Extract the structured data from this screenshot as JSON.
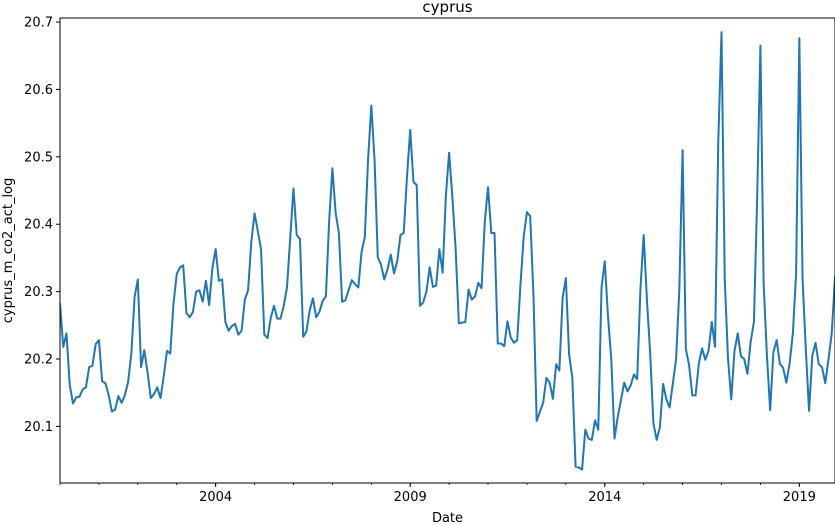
{
  "chart_data": {
    "type": "line",
    "title": "cyprus",
    "xlabel": "Date",
    "ylabel": "cyprus_m_co2_act_log",
    "x_range": [
      "2000-01",
      "2019-12"
    ],
    "x_ticks": [
      "2004",
      "2009",
      "2014",
      "2019"
    ],
    "ylim": [
      20.016,
      20.706
    ],
    "y_ticks": [
      "20.1",
      "20.2",
      "20.3",
      "20.4",
      "20.5",
      "20.6",
      "20.7"
    ],
    "grid": false,
    "line_color": "#1f77b4",
    "series": [
      {
        "x": [
          "2000-01",
          "2000-02",
          "2000-03",
          "2000-04",
          "2000-05",
          "2000-06",
          "2000-07",
          "2000-08",
          "2000-09",
          "2000-10",
          "2000-11",
          "2000-12",
          "2001-01",
          "2001-02",
          "2001-03",
          "2001-04",
          "2001-05",
          "2001-06",
          "2001-07",
          "2001-08",
          "2001-09",
          "2001-10",
          "2001-11",
          "2001-12",
          "2002-01",
          "2002-02",
          "2002-03",
          "2002-04",
          "2002-05",
          "2002-06",
          "2002-07",
          "2002-08",
          "2002-09",
          "2002-10",
          "2002-11",
          "2002-12",
          "2003-01",
          "2003-02",
          "2003-03",
          "2003-04",
          "2003-05",
          "2003-06",
          "2003-07",
          "2003-08",
          "2003-09",
          "2003-10",
          "2003-11",
          "2003-12",
          "2004-01",
          "2004-02",
          "2004-03",
          "2004-04",
          "2004-05",
          "2004-06",
          "2004-07",
          "2004-08",
          "2004-09",
          "2004-10",
          "2004-11",
          "2004-12",
          "2005-01",
          "2005-02",
          "2005-03",
          "2005-04",
          "2005-05",
          "2005-06",
          "2005-07",
          "2005-08",
          "2005-09",
          "2005-10",
          "2005-11",
          "2005-12",
          "2006-01",
          "2006-02",
          "2006-03",
          "2006-04",
          "2006-05",
          "2006-06",
          "2006-07",
          "2006-08",
          "2006-09",
          "2006-10",
          "2006-11",
          "2006-12",
          "2007-01",
          "2007-02",
          "2007-03",
          "2007-04",
          "2007-05",
          "2007-06",
          "2007-07",
          "2007-08",
          "2007-09",
          "2007-10",
          "2007-11",
          "2007-12",
          "2008-01",
          "2008-02",
          "2008-03",
          "2008-04",
          "2008-05",
          "2008-06",
          "2008-07",
          "2008-08",
          "2008-09",
          "2008-10",
          "2008-11",
          "2008-12",
          "2009-01",
          "2009-02",
          "2009-03",
          "2009-04",
          "2009-05",
          "2009-06",
          "2009-07",
          "2009-08",
          "2009-09",
          "2009-10",
          "2009-11",
          "2009-12",
          "2010-01",
          "2010-02",
          "2010-03",
          "2010-04",
          "2010-05",
          "2010-06",
          "2010-07",
          "2010-08",
          "2010-09",
          "2010-10",
          "2010-11",
          "2010-12",
          "2011-01",
          "2011-02",
          "2011-03",
          "2011-04",
          "2011-05",
          "2011-06",
          "2011-07",
          "2011-08",
          "2011-09",
          "2011-10",
          "2011-11",
          "2011-12",
          "2012-01",
          "2012-02",
          "2012-03",
          "2012-04",
          "2012-05",
          "2012-06",
          "2012-07",
          "2012-08",
          "2012-09",
          "2012-10",
          "2012-11",
          "2012-12",
          "2013-01",
          "2013-02",
          "2013-03",
          "2013-04",
          "2013-05",
          "2013-06",
          "2013-07",
          "2013-08",
          "2013-09",
          "2013-10",
          "2013-11",
          "2013-12",
          "2014-01",
          "2014-02",
          "2014-03",
          "2014-04",
          "2014-05",
          "2014-06",
          "2014-07",
          "2014-08",
          "2014-09",
          "2014-10",
          "2014-11",
          "2014-12",
          "2015-01",
          "2015-02",
          "2015-03",
          "2015-04",
          "2015-05",
          "2015-06",
          "2015-07",
          "2015-08",
          "2015-09",
          "2015-10",
          "2015-11",
          "2015-12",
          "2016-01",
          "2016-02",
          "2016-03",
          "2016-04",
          "2016-05",
          "2016-06",
          "2016-07",
          "2016-08",
          "2016-09",
          "2016-10",
          "2016-11",
          "2016-12",
          "2017-01",
          "2017-02",
          "2017-03",
          "2017-04",
          "2017-05",
          "2017-06",
          "2017-07",
          "2017-08",
          "2017-09",
          "2017-10",
          "2017-11",
          "2017-12",
          "2018-01",
          "2018-02",
          "2018-03",
          "2018-04",
          "2018-05",
          "2018-06",
          "2018-07",
          "2018-08",
          "2018-09",
          "2018-10",
          "2018-11",
          "2018-12",
          "2019-01",
          "2019-02",
          "2019-03",
          "2019-04",
          "2019-05",
          "2019-06",
          "2019-07",
          "2019-08",
          "2019-09",
          "2019-10",
          "2019-11",
          "2019-12"
        ],
        "y": [
          20.282,
          20.218,
          20.238,
          20.162,
          20.134,
          20.143,
          20.144,
          20.155,
          20.158,
          20.188,
          20.19,
          20.222,
          20.228,
          20.167,
          20.164,
          20.147,
          20.122,
          20.125,
          20.145,
          20.135,
          20.146,
          20.166,
          20.208,
          20.292,
          20.318,
          20.188,
          20.213,
          20.18,
          20.142,
          20.148,
          20.158,
          20.142,
          20.175,
          20.212,
          20.208,
          20.282,
          20.326,
          20.336,
          20.339,
          20.268,
          20.262,
          20.27,
          20.3,
          20.302,
          20.285,
          20.316,
          20.28,
          20.335,
          20.363,
          20.316,
          20.318,
          20.255,
          20.242,
          20.249,
          20.252,
          20.236,
          20.242,
          20.288,
          20.302,
          20.374,
          20.416,
          20.39,
          20.363,
          20.236,
          20.231,
          20.261,
          20.279,
          20.26,
          20.26,
          20.279,
          20.306,
          20.38,
          20.453,
          20.384,
          20.378,
          20.233,
          20.241,
          20.272,
          20.29,
          20.262,
          20.27,
          20.286,
          20.293,
          20.404,
          20.483,
          20.417,
          20.387,
          20.285,
          20.287,
          20.302,
          20.317,
          20.311,
          20.306,
          20.359,
          20.381,
          20.495,
          20.576,
          20.496,
          20.351,
          20.34,
          20.318,
          20.333,
          20.355,
          20.327,
          20.345,
          20.384,
          20.387,
          20.47,
          20.54,
          20.463,
          20.458,
          20.279,
          20.284,
          20.3,
          20.336,
          20.307,
          20.309,
          20.363,
          20.328,
          20.442,
          20.506,
          20.44,
          20.364,
          20.253,
          20.254,
          20.255,
          20.303,
          20.288,
          20.293,
          20.313,
          20.305,
          20.404,
          20.455,
          20.387,
          20.387,
          20.223,
          20.223,
          20.219,
          20.256,
          20.232,
          20.224,
          20.228,
          20.31,
          20.382,
          20.418,
          20.412,
          20.297,
          20.108,
          20.122,
          20.135,
          20.172,
          20.165,
          20.141,
          20.192,
          20.183,
          20.291,
          20.32,
          20.207,
          20.172,
          20.04,
          20.039,
          20.036,
          20.095,
          20.082,
          20.08,
          20.109,
          20.095,
          20.306,
          20.345,
          20.263,
          20.2,
          20.082,
          20.114,
          20.139,
          20.165,
          20.152,
          20.161,
          20.177,
          20.17,
          20.304,
          20.384,
          20.288,
          20.208,
          20.105,
          20.08,
          20.099,
          20.163,
          20.14,
          20.128,
          20.164,
          20.2,
          20.304,
          20.51,
          20.215,
          20.191,
          20.146,
          20.146,
          20.193,
          20.216,
          20.199,
          20.212,
          20.255,
          20.218,
          20.522,
          20.685,
          20.318,
          20.201,
          20.14,
          20.212,
          20.238,
          20.204,
          20.2,
          20.178,
          20.226,
          20.255,
          20.44,
          20.665,
          20.311,
          20.206,
          20.124,
          20.21,
          20.228,
          20.193,
          20.187,
          20.165,
          20.193,
          20.238,
          20.326,
          20.676,
          20.318,
          20.214,
          20.123,
          20.205,
          20.224,
          20.192,
          20.188,
          20.164,
          20.2,
          20.238,
          20.322
        ]
      }
    ]
  }
}
